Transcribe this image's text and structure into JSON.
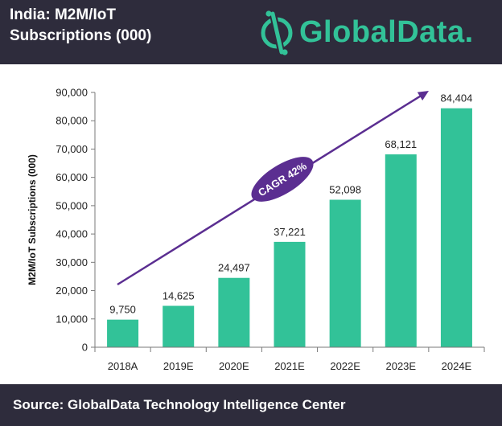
{
  "header": {
    "title": "India: M2M/IoT\nSubscriptions (000)",
    "brand": "GlobalData.",
    "background": "#2e2c3c",
    "brand_color": "#32c298",
    "logo_icon": "globaldata-logo-icon"
  },
  "footer": {
    "source": "Source: GlobalData Technology Intelligence Center",
    "background": "#2e2c3c"
  },
  "chart_data": {
    "type": "bar",
    "title": "",
    "xlabel": "",
    "ylabel": "M2M/IoT Subscriptions (000)",
    "categories": [
      "2018A",
      "2019E",
      "2020E",
      "2021E",
      "2022E",
      "2023E",
      "2024E"
    ],
    "values": [
      9750,
      14625,
      24497,
      37221,
      52098,
      68121,
      84404
    ],
    "data_labels": [
      "9,750",
      "14,625",
      "24,497",
      "37,221",
      "52,098",
      "68,121",
      "84,404"
    ],
    "ylim": [
      0,
      90000
    ],
    "yticks": [
      0,
      10000,
      20000,
      30000,
      40000,
      50000,
      60000,
      70000,
      80000,
      90000
    ],
    "ytick_labels": [
      "0",
      "10,000",
      "20,000",
      "30,000",
      "40,000",
      "50,000",
      "60,000",
      "70,000",
      "80,000",
      "90,000"
    ],
    "grid": false,
    "bar_color": "#32c298",
    "annotation": {
      "text": "CAGR 42%",
      "color": "#5b2e91"
    }
  }
}
